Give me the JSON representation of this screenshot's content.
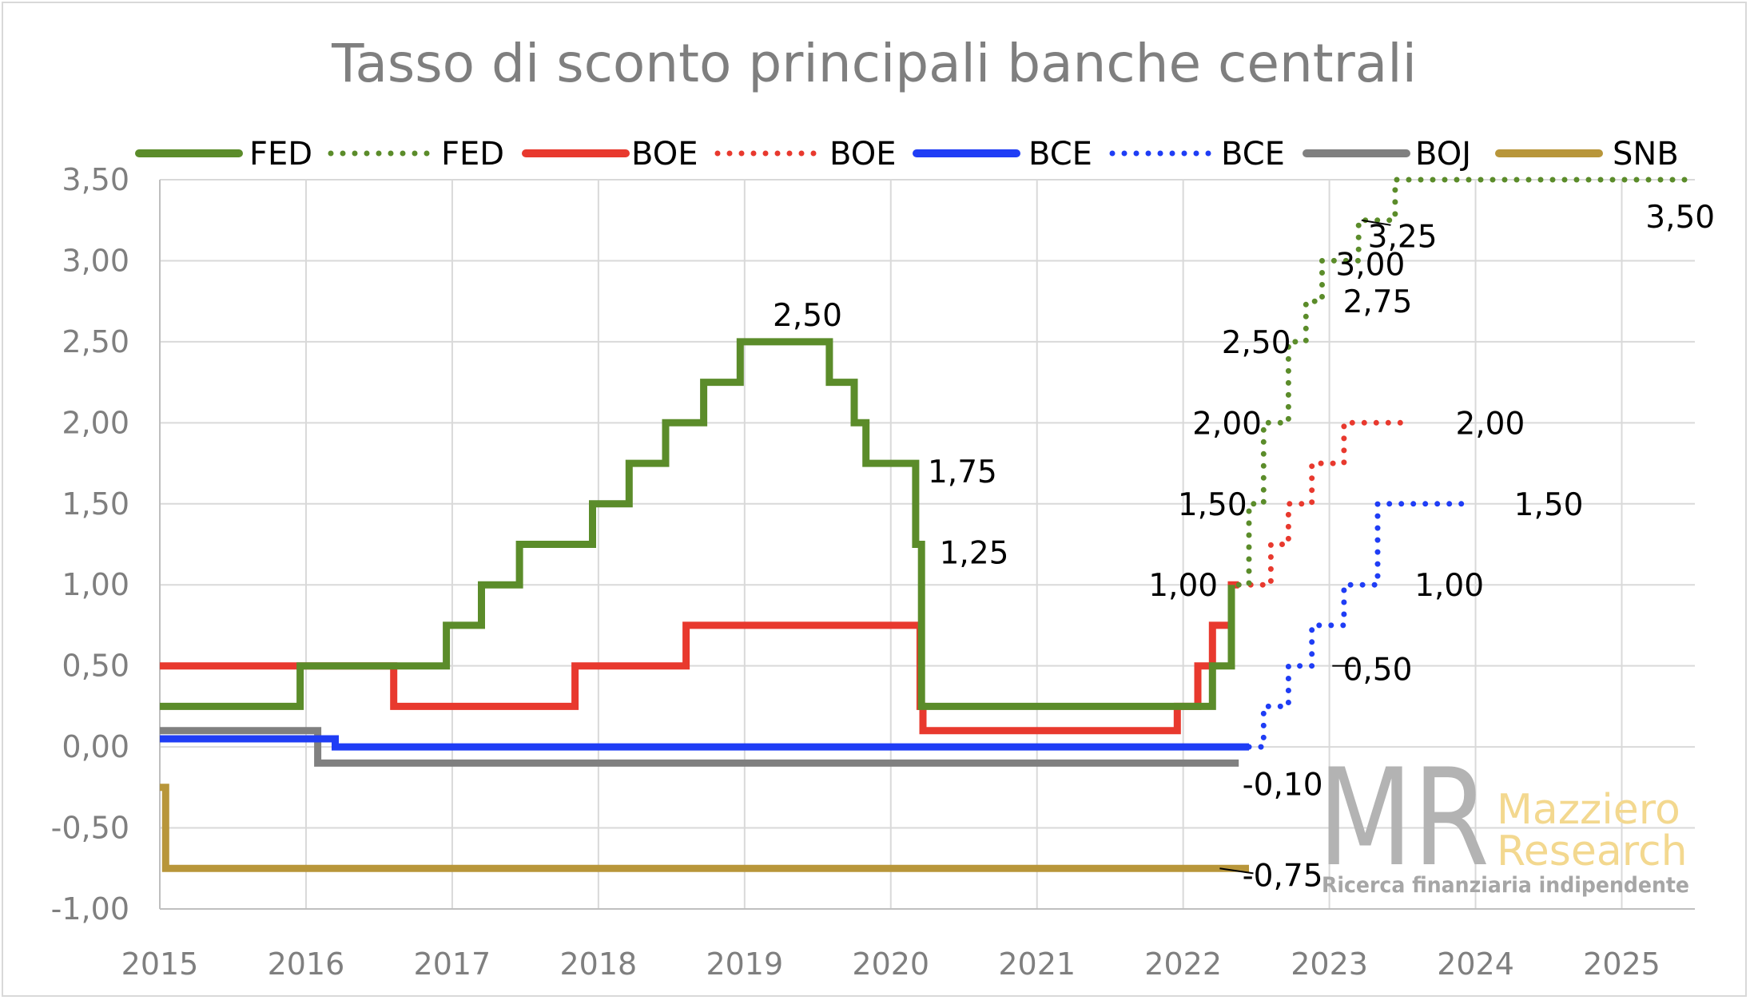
{
  "chart_data": {
    "type": "line",
    "title": "Tasso di sconto principali banche centrali",
    "xlabel": "",
    "ylabel": "",
    "xlim": [
      2015,
      2025.5
    ],
    "ylim": [
      -1.0,
      3.5
    ],
    "grid": true,
    "legend_position": "top",
    "x_ticks": [
      2015,
      2016,
      2017,
      2018,
      2019,
      2020,
      2021,
      2022,
      2023,
      2024,
      2025
    ],
    "x_tick_labels": [
      "2015",
      "2016",
      "2017",
      "2018",
      "2019",
      "2020",
      "2021",
      "2022",
      "2023",
      "2024",
      "2025"
    ],
    "y_ticks": [
      -1.0,
      -0.5,
      0.0,
      0.5,
      1.0,
      1.5,
      2.0,
      2.5,
      3.0,
      3.5
    ],
    "y_tick_labels": [
      "-1,00",
      "-0,50",
      "0,00",
      "0,50",
      "1,00",
      "1,50",
      "2,00",
      "2,50",
      "3,00",
      "3,50"
    ],
    "series": [
      {
        "name": "FED",
        "style": "solid",
        "color": "#5b8c2a",
        "points": [
          [
            2015.0,
            0.25
          ],
          [
            2015.96,
            0.25
          ],
          [
            2015.96,
            0.5
          ],
          [
            2016.96,
            0.5
          ],
          [
            2016.96,
            0.75
          ],
          [
            2017.2,
            0.75
          ],
          [
            2017.2,
            1.0
          ],
          [
            2017.46,
            1.0
          ],
          [
            2017.46,
            1.25
          ],
          [
            2017.96,
            1.25
          ],
          [
            2017.96,
            1.5
          ],
          [
            2018.21,
            1.5
          ],
          [
            2018.21,
            1.75
          ],
          [
            2018.46,
            1.75
          ],
          [
            2018.46,
            2.0
          ],
          [
            2018.72,
            2.0
          ],
          [
            2018.72,
            2.25
          ],
          [
            2018.97,
            2.25
          ],
          [
            2018.97,
            2.5
          ],
          [
            2019.58,
            2.5
          ],
          [
            2019.58,
            2.25
          ],
          [
            2019.75,
            2.25
          ],
          [
            2019.75,
            2.0
          ],
          [
            2019.83,
            2.0
          ],
          [
            2019.83,
            1.75
          ],
          [
            2020.17,
            1.75
          ],
          [
            2020.17,
            1.25
          ],
          [
            2020.21,
            1.25
          ],
          [
            2020.21,
            0.25
          ],
          [
            2022.2,
            0.25
          ],
          [
            2022.2,
            0.5
          ],
          [
            2022.33,
            0.5
          ],
          [
            2022.33,
            1.0
          ]
        ]
      },
      {
        "name": "FED",
        "style": "dotted",
        "color": "#5b8c2a",
        "points": [
          [
            2022.38,
            1.0
          ],
          [
            2022.45,
            1.0
          ],
          [
            2022.45,
            1.5
          ],
          [
            2022.55,
            1.5
          ],
          [
            2022.55,
            2.0
          ],
          [
            2022.72,
            2.0
          ],
          [
            2022.72,
            2.5
          ],
          [
            2022.84,
            2.5
          ],
          [
            2022.84,
            2.75
          ],
          [
            2022.95,
            2.75
          ],
          [
            2022.95,
            3.0
          ],
          [
            2023.2,
            3.0
          ],
          [
            2023.2,
            3.25
          ],
          [
            2023.45,
            3.25
          ],
          [
            2023.45,
            3.5
          ],
          [
            2025.5,
            3.5
          ]
        ]
      },
      {
        "name": "BOE",
        "style": "solid",
        "color": "#e8392e",
        "points": [
          [
            2015.0,
            0.5
          ],
          [
            2016.6,
            0.5
          ],
          [
            2016.6,
            0.25
          ],
          [
            2017.84,
            0.25
          ],
          [
            2017.84,
            0.5
          ],
          [
            2018.6,
            0.5
          ],
          [
            2018.6,
            0.75
          ],
          [
            2020.2,
            0.75
          ],
          [
            2020.2,
            0.25
          ],
          [
            2020.22,
            0.25
          ],
          [
            2020.22,
            0.1
          ],
          [
            2021.96,
            0.1
          ],
          [
            2021.96,
            0.25
          ],
          [
            2022.1,
            0.25
          ],
          [
            2022.1,
            0.5
          ],
          [
            2022.2,
            0.5
          ],
          [
            2022.2,
            0.75
          ],
          [
            2022.33,
            0.75
          ],
          [
            2022.33,
            1.0
          ],
          [
            2022.38,
            1.0
          ]
        ]
      },
      {
        "name": "BOE",
        "style": "dotted",
        "color": "#e8392e",
        "points": [
          [
            2022.38,
            1.0
          ],
          [
            2022.6,
            1.0
          ],
          [
            2022.6,
            1.25
          ],
          [
            2022.72,
            1.25
          ],
          [
            2022.72,
            1.5
          ],
          [
            2022.88,
            1.5
          ],
          [
            2022.88,
            1.75
          ],
          [
            2023.1,
            1.75
          ],
          [
            2023.1,
            2.0
          ],
          [
            2023.55,
            2.0
          ]
        ]
      },
      {
        "name": "BCE",
        "style": "solid",
        "color": "#1f3df5",
        "points": [
          [
            2015.0,
            0.05
          ],
          [
            2016.2,
            0.05
          ],
          [
            2016.2,
            0.0
          ],
          [
            2022.45,
            0.0
          ]
        ]
      },
      {
        "name": "BCE",
        "style": "dotted",
        "color": "#1f3df5",
        "points": [
          [
            2022.45,
            0.0
          ],
          [
            2022.55,
            0.0
          ],
          [
            2022.55,
            0.25
          ],
          [
            2022.72,
            0.25
          ],
          [
            2022.72,
            0.5
          ],
          [
            2022.88,
            0.5
          ],
          [
            2022.88,
            0.75
          ],
          [
            2023.1,
            0.75
          ],
          [
            2023.1,
            1.0
          ],
          [
            2023.33,
            1.0
          ],
          [
            2023.33,
            1.5
          ],
          [
            2023.95,
            1.5
          ]
        ]
      },
      {
        "name": "BOJ",
        "style": "solid",
        "color": "#808080",
        "points": [
          [
            2015.0,
            0.1
          ],
          [
            2016.08,
            0.1
          ],
          [
            2016.08,
            -0.1
          ],
          [
            2022.38,
            -0.1
          ]
        ]
      },
      {
        "name": "SNB",
        "style": "solid",
        "color": "#b8963a",
        "points": [
          [
            2015.0,
            -0.25
          ],
          [
            2015.04,
            -0.25
          ],
          [
            2015.04,
            -0.75
          ],
          [
            2022.45,
            -0.75
          ]
        ]
      }
    ],
    "data_labels": [
      {
        "text": "2,50",
        "x": 2019.43,
        "y": 2.5
      },
      {
        "text": "1,75",
        "x": 2020.49,
        "y": 1.75
      },
      {
        "text": "1,25",
        "x": 2020.57,
        "y": 1.25
      },
      {
        "text": "1,00",
        "x": 2022.0,
        "y": 1.0
      },
      {
        "text": "1,50",
        "x": 2022.2,
        "y": 1.5
      },
      {
        "text": "2,00",
        "x": 2022.3,
        "y": 2.0
      },
      {
        "text": "2,50",
        "x": 2022.5,
        "y": 2.5
      },
      {
        "text": "2,75",
        "x": 2023.33,
        "y": 2.75
      },
      {
        "text": "3,00",
        "x": 2023.28,
        "y": 3.0
      },
      {
        "text": "3,25",
        "x": 2023.5,
        "y": 3.25
      },
      {
        "text": "3,50",
        "x": 2025.4,
        "y": 3.5
      },
      {
        "text": "2,00",
        "x": 2024.1,
        "y": 2.0
      },
      {
        "text": "1,50",
        "x": 2024.5,
        "y": 1.5
      },
      {
        "text": "1,00",
        "x": 2023.82,
        "y": 1.0
      },
      {
        "text": "0,50",
        "x": 2023.33,
        "y": 0.5
      },
      {
        "text": "-0,10",
        "x": 2022.68,
        "y": -0.1
      },
      {
        "text": "-0,75",
        "x": 2022.68,
        "y": -0.75
      }
    ]
  },
  "watermark": {
    "logo_text": "MR",
    "line1": "Mazziero",
    "line2": "Research",
    "tagline": "Ricerca finanziaria indipendente"
  }
}
